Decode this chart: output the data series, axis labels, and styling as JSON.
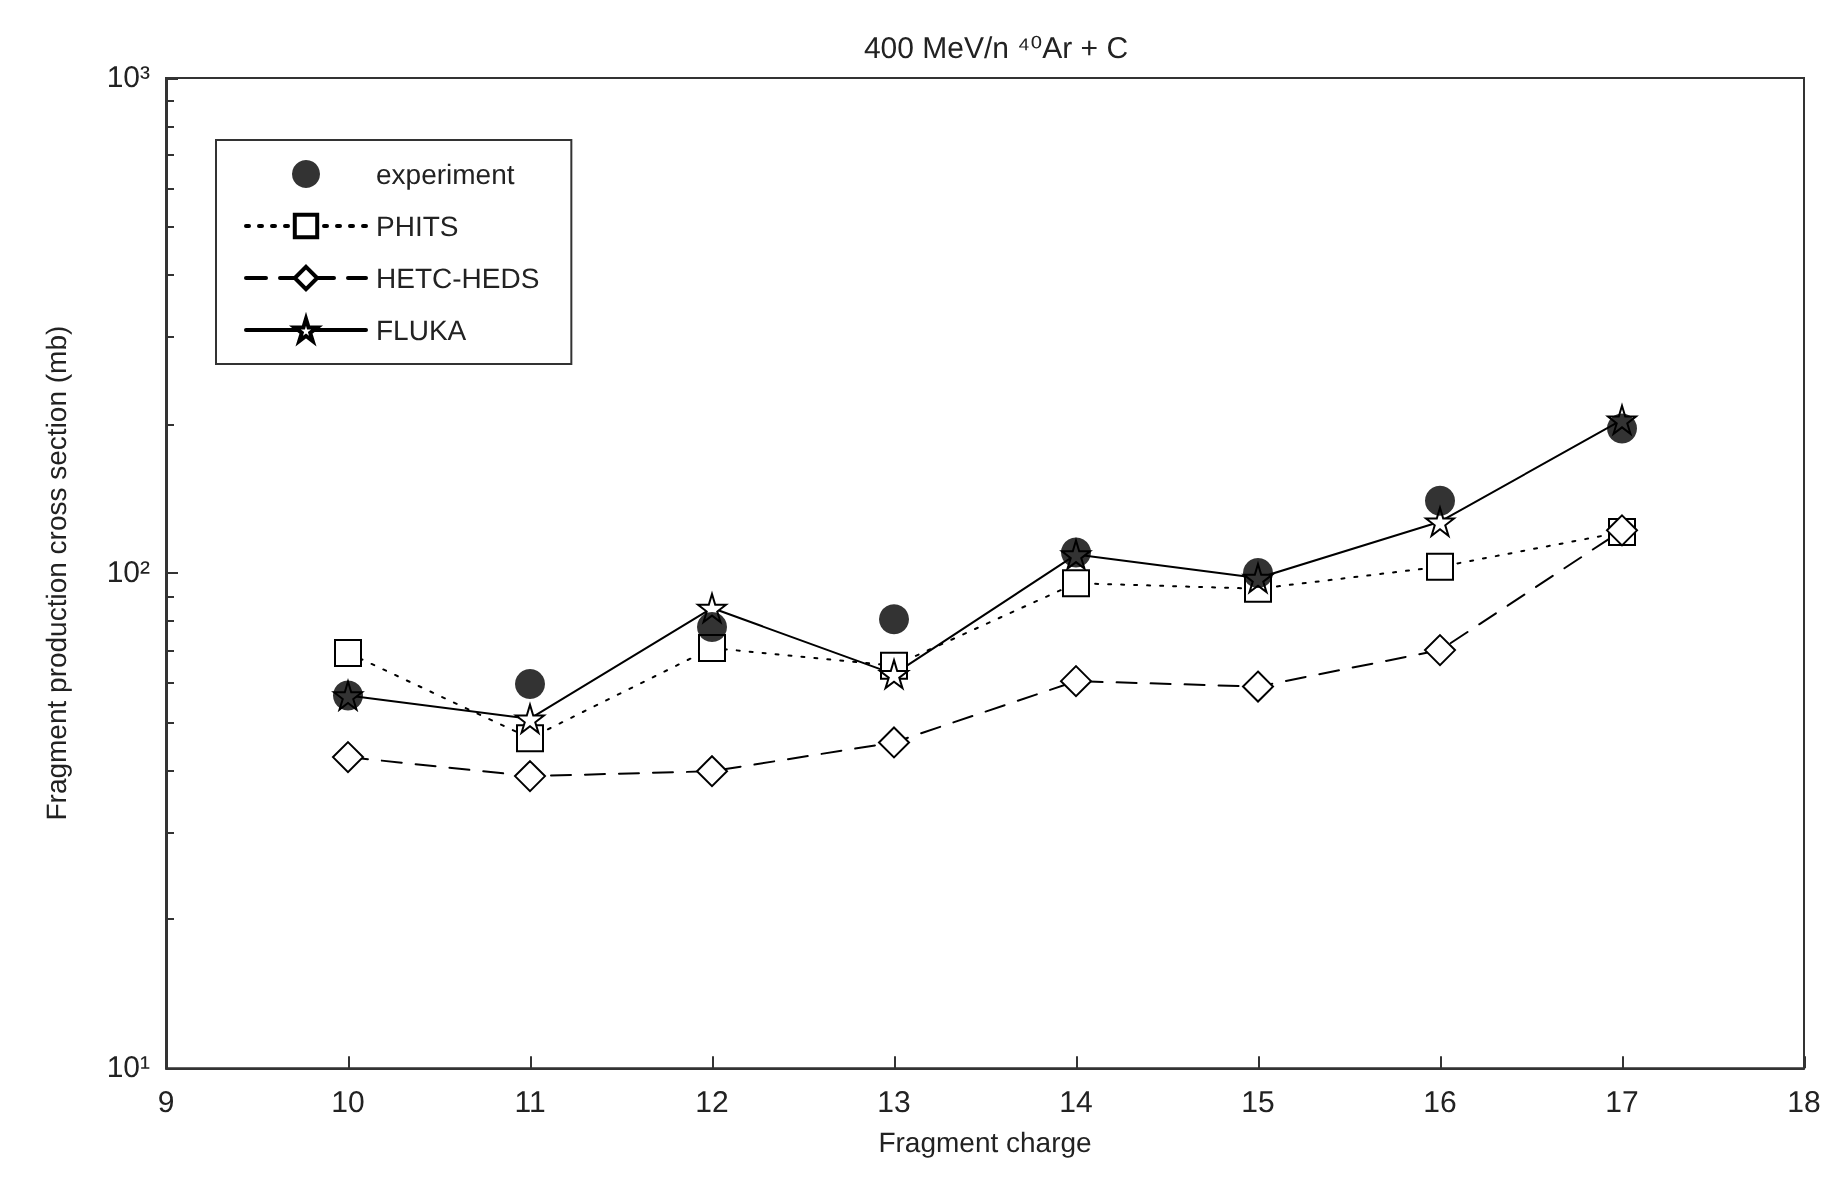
{
  "chart_data": {
    "type": "line",
    "title": "400 MeV/n ⁴⁰Ar + C",
    "xlabel": "Fragment charge",
    "ylabel": "Fragment production cross section (mb)",
    "x": [
      10,
      11,
      12,
      13,
      14,
      15,
      16,
      17
    ],
    "series": [
      {
        "name": "experiment",
        "type": "scatter",
        "color": "#000000",
        "marker": "circle",
        "values": [
          56.6,
          59.7,
          77.8,
          80.7,
          110,
          100,
          140,
          196
        ]
      },
      {
        "name": "PHITS",
        "color": "#000000",
        "marker": "square",
        "line_style": "dotted",
        "values": [
          69,
          46.4,
          70.6,
          65,
          95.4,
          93,
          103,
          121
        ]
      },
      {
        "name": "HETC-HEDS",
        "color": "#000000",
        "marker": "diamond",
        "line_style": "dashed",
        "values": [
          42.5,
          38.9,
          39.8,
          45.5,
          60.5,
          59,
          69.9,
          122
        ]
      },
      {
        "name": "FLUKA",
        "color": "#000000",
        "marker": "star",
        "line_style": "solid",
        "values": [
          56.6,
          50.8,
          85,
          62.5,
          109,
          97.7,
          127,
          204
        ]
      }
    ],
    "xlim": [
      9,
      18
    ],
    "xticks": [
      9,
      10,
      11,
      12,
      13,
      14,
      15,
      16,
      17,
      18
    ],
    "ylim": [
      10,
      1000
    ],
    "yticks": [
      {
        "value": 10,
        "label": "10¹"
      },
      {
        "value": 100,
        "label": "10²"
      },
      {
        "value": 1000,
        "label": "10³"
      }
    ],
    "log": "y",
    "grid": false,
    "legend": "top left"
  }
}
